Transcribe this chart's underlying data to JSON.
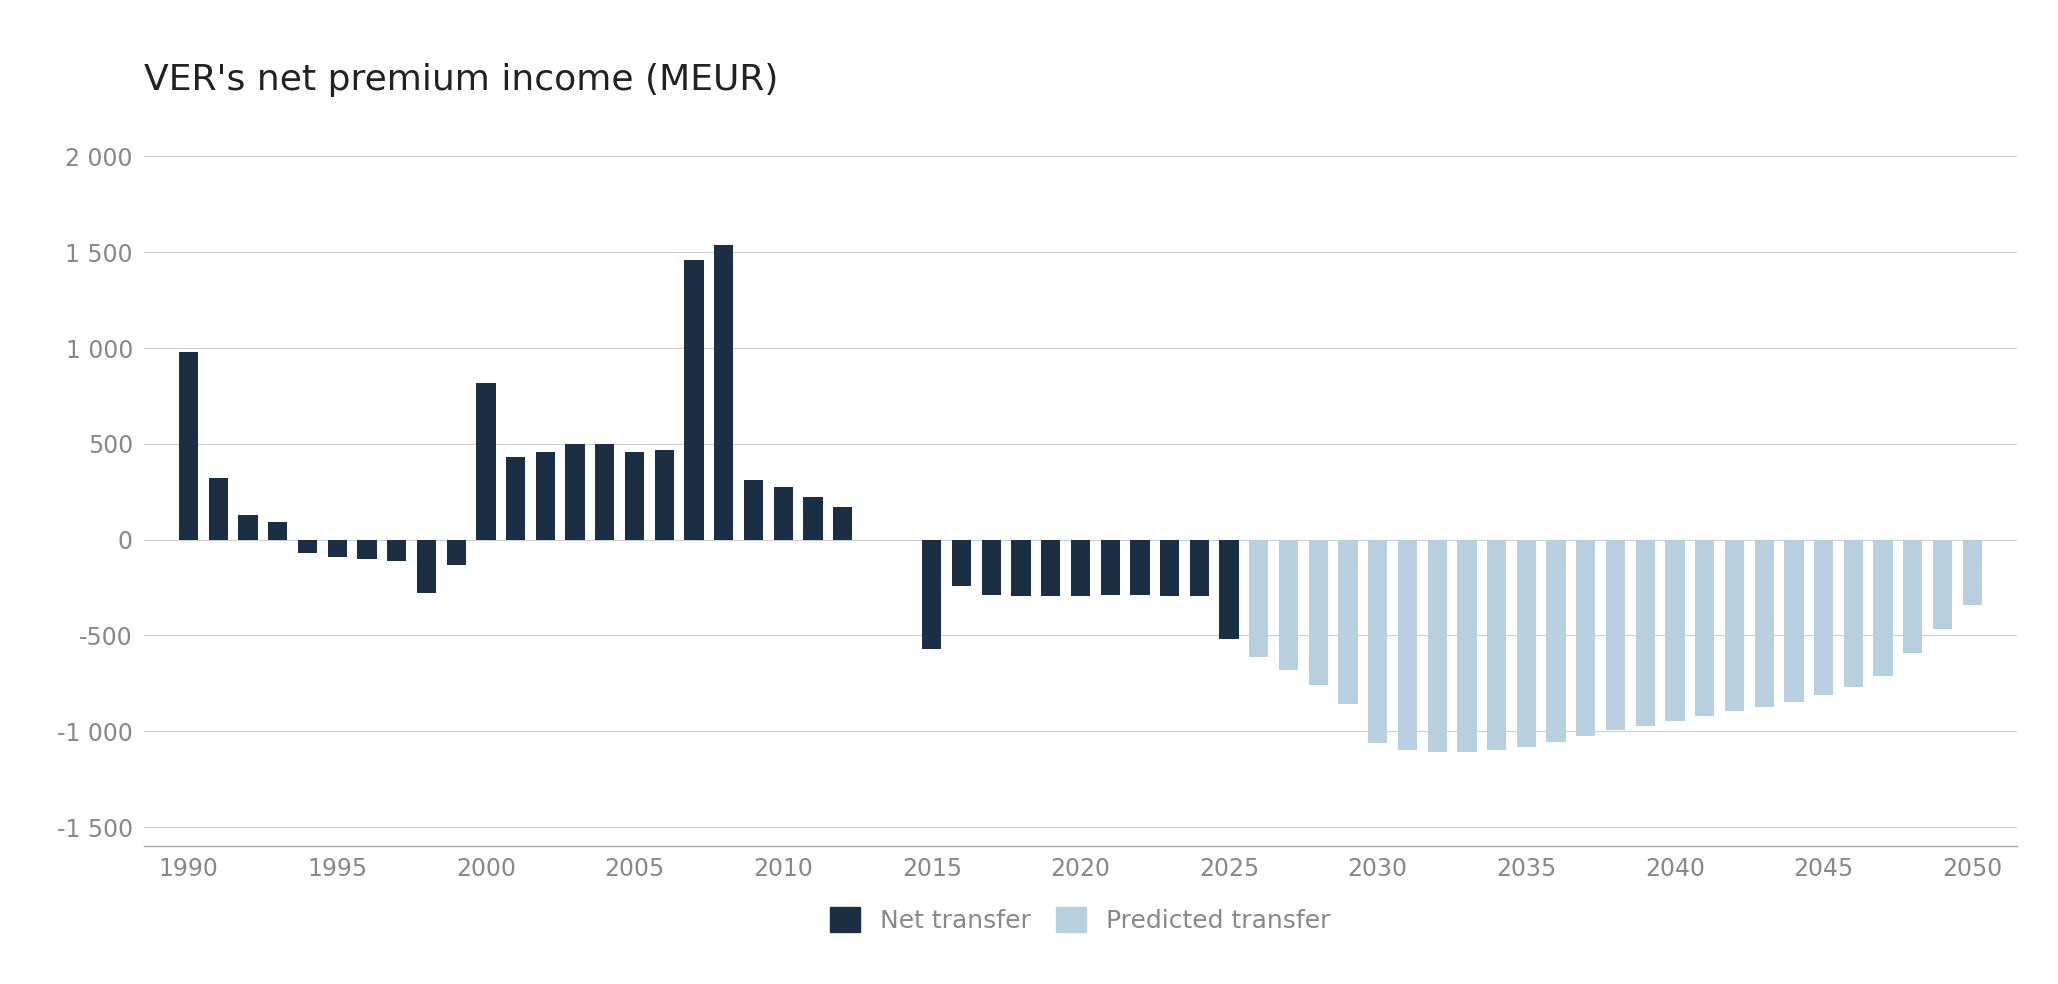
{
  "title": "VER's net premium income (MEUR)",
  "title_fontsize": 26,
  "background_color": "#ffffff",
  "bar_color_net": "#1a2e44",
  "bar_color_predicted": "#b8cfe0",
  "ylim": [
    -1600,
    2200
  ],
  "yticks": [
    -1500,
    -1000,
    -500,
    0,
    500,
    1000,
    1500,
    2000
  ],
  "ytick_labels": [
    "-1 500",
    "-1 000",
    "-500",
    "0",
    "500",
    "1 000",
    "1 500",
    "2 000"
  ],
  "grid_color": "#d0d0d0",
  "axis_color": "#aaaaaa",
  "tick_label_color": "#888888",
  "legend_net_label": "Net transfer",
  "legend_predicted_label": "Predicted transfer",
  "net_transfer": {
    "years": [
      1990,
      1991,
      1992,
      1993,
      1994,
      1995,
      1996,
      1997,
      1998,
      1999,
      2000,
      2001,
      2002,
      2003,
      2004,
      2005,
      2006,
      2007,
      2008,
      2009,
      2010,
      2011,
      2012,
      2015,
      2016,
      2017,
      2018,
      2019,
      2020,
      2021,
      2022,
      2023,
      2024,
      2025
    ],
    "values": [
      980,
      320,
      130,
      90,
      -70,
      -90,
      -100,
      -110,
      -280,
      -130,
      820,
      430,
      460,
      500,
      500,
      460,
      470,
      1460,
      1540,
      310,
      275,
      220,
      170,
      -570,
      -240,
      -290,
      -295,
      -295,
      -295,
      -290,
      -290,
      -295,
      -295,
      -520
    ]
  },
  "predicted_transfer": {
    "years": [
      2026,
      2027,
      2028,
      2029,
      2030,
      2031,
      2032,
      2033,
      2034,
      2035,
      2036,
      2037,
      2038,
      2039,
      2040,
      2041,
      2042,
      2043,
      2044,
      2045,
      2046,
      2047,
      2048,
      2049,
      2050
    ],
    "values": [
      -610,
      -680,
      -760,
      -860,
      -1060,
      -1100,
      -1110,
      -1110,
      -1100,
      -1080,
      -1055,
      -1025,
      -995,
      -970,
      -945,
      -920,
      -895,
      -875,
      -845,
      -810,
      -770,
      -710,
      -590,
      -465,
      -340
    ]
  },
  "xlim": [
    1988.5,
    2051.5
  ],
  "bar_width": 0.65
}
